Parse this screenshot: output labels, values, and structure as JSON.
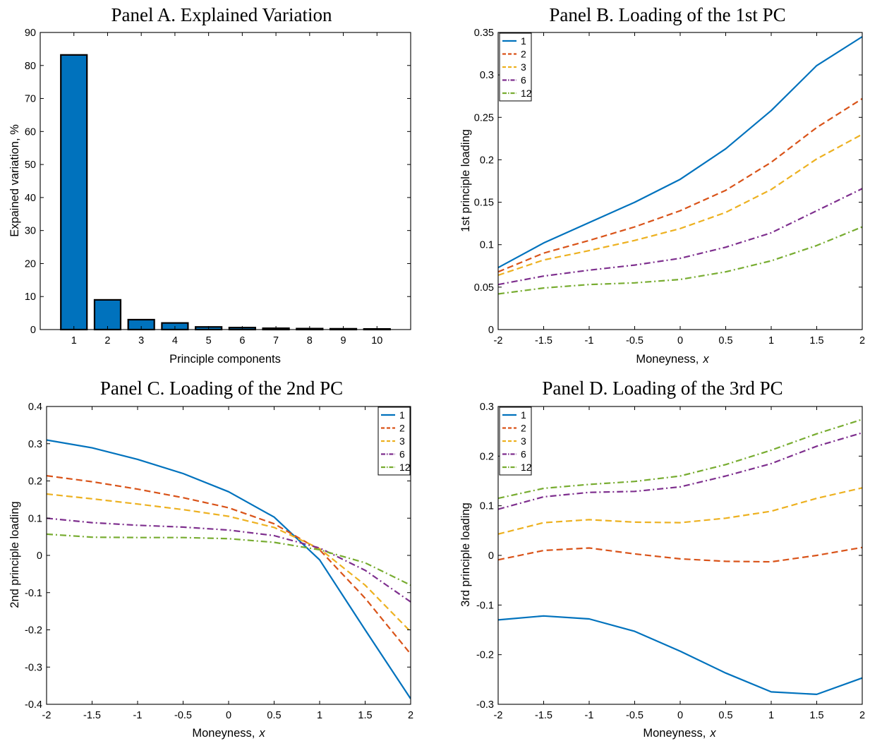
{
  "chart_data": [
    {
      "id": "A",
      "type": "bar",
      "title": "Panel A. Explained Variation",
      "xlabel": "Principle components",
      "ylabel": "Expained variation, %",
      "categories": [
        "1",
        "2",
        "3",
        "4",
        "5",
        "6",
        "7",
        "8",
        "9",
        "10"
      ],
      "values": [
        83.2,
        9.0,
        3.0,
        2.0,
        0.8,
        0.6,
        0.4,
        0.3,
        0.25,
        0.2
      ],
      "xlim": [
        0,
        11
      ],
      "ylim": [
        0,
        90
      ],
      "yticks": [
        "0",
        "10",
        "20",
        "30",
        "40",
        "50",
        "60",
        "70",
        "80",
        "90"
      ],
      "bar_color": "#0072BD",
      "grid": false
    },
    {
      "id": "B",
      "type": "line",
      "title": "Panel B. Loading of the 1st PC",
      "xlabel": "Moneyness,",
      "xlabel_var": "x",
      "ylabel": "1st principle loading",
      "x": [
        -2,
        -1.5,
        -1,
        -0.5,
        0,
        0.5,
        1,
        1.5,
        2
      ],
      "xticks": [
        "-2",
        "-1.5",
        "-1",
        "-0.5",
        "0",
        "0.5",
        "1",
        "1.5",
        "2"
      ],
      "xlim": [
        -2,
        2
      ],
      "ylim": [
        0,
        0.35
      ],
      "yticks": [
        "0",
        "0.05",
        "0.1",
        "0.15",
        "0.2",
        "0.25",
        "0.3",
        "0.35"
      ],
      "legend_position": "top-left",
      "grid": false,
      "series": [
        {
          "name": "1",
          "values": [
            0.073,
            0.102,
            0.126,
            0.15,
            0.177,
            0.213,
            0.258,
            0.311,
            0.345
          ]
        },
        {
          "name": "2",
          "values": [
            0.068,
            0.09,
            0.105,
            0.121,
            0.14,
            0.164,
            0.197,
            0.238,
            0.272
          ]
        },
        {
          "name": "3",
          "values": [
            0.064,
            0.082,
            0.093,
            0.105,
            0.119,
            0.138,
            0.165,
            0.201,
            0.23
          ]
        },
        {
          "name": "6",
          "values": [
            0.053,
            0.063,
            0.07,
            0.076,
            0.084,
            0.097,
            0.114,
            0.14,
            0.166
          ]
        },
        {
          "name": "12",
          "values": [
            0.042,
            0.049,
            0.053,
            0.055,
            0.059,
            0.068,
            0.081,
            0.099,
            0.121
          ]
        }
      ]
    },
    {
      "id": "C",
      "type": "line",
      "title": "Panel C. Loading of the 2nd PC",
      "xlabel": "Moneyness,",
      "xlabel_var": "x",
      "ylabel": "2nd principle loading",
      "x": [
        -2,
        -1.5,
        -1,
        -0.5,
        0,
        0.5,
        1,
        1.5,
        2
      ],
      "xticks": [
        "-2",
        "-1.5",
        "-1",
        "-0.5",
        "0",
        "0.5",
        "1",
        "1.5",
        "2"
      ],
      "xlim": [
        -2,
        2
      ],
      "ylim": [
        -0.4,
        0.4
      ],
      "yticks": [
        "-0.4",
        "-0.3",
        "-0.2",
        "-0.1",
        "0",
        "0.1",
        "0.2",
        "0.3",
        "0.4"
      ],
      "legend_position": "top-right",
      "grid": false,
      "series": [
        {
          "name": "1",
          "values": [
            0.31,
            0.289,
            0.258,
            0.22,
            0.171,
            0.103,
            -0.012,
            -0.2,
            -0.385
          ]
        },
        {
          "name": "2",
          "values": [
            0.214,
            0.198,
            0.178,
            0.155,
            0.128,
            0.085,
            0.015,
            -0.115,
            -0.265
          ]
        },
        {
          "name": "3",
          "values": [
            0.165,
            0.152,
            0.138,
            0.123,
            0.105,
            0.075,
            0.018,
            -0.08,
            -0.205
          ]
        },
        {
          "name": "6",
          "values": [
            0.1,
            0.088,
            0.081,
            0.076,
            0.068,
            0.053,
            0.02,
            -0.04,
            -0.125
          ]
        },
        {
          "name": "12",
          "values": [
            0.057,
            0.049,
            0.048,
            0.048,
            0.045,
            0.035,
            0.015,
            -0.02,
            -0.08
          ]
        }
      ]
    },
    {
      "id": "D",
      "type": "line",
      "title": "Panel D. Loading of the 3rd PC",
      "xlabel": "Moneyness,",
      "xlabel_var": "x",
      "ylabel": "3rd principle loading",
      "x": [
        -2,
        -1.5,
        -1,
        -0.5,
        0,
        0.5,
        1,
        1.5,
        2
      ],
      "xticks": [
        "-2",
        "-1.5",
        "-1",
        "-0.5",
        "0",
        "0.5",
        "1",
        "1.5",
        "2"
      ],
      "xlim": [
        -2,
        2
      ],
      "ylim": [
        -0.3,
        0.3
      ],
      "yticks": [
        "-0.3",
        "-0.2",
        "-0.1",
        "0",
        "0.1",
        "0.2",
        "0.3"
      ],
      "legend_position": "top-left",
      "grid": false,
      "series": [
        {
          "name": "1",
          "values": [
            -0.13,
            -0.122,
            -0.128,
            -0.153,
            -0.193,
            -0.237,
            -0.275,
            -0.28,
            -0.247
          ]
        },
        {
          "name": "2",
          "values": [
            -0.009,
            0.01,
            0.015,
            0.003,
            -0.007,
            -0.012,
            -0.013,
            0.0,
            0.016
          ]
        },
        {
          "name": "3",
          "values": [
            0.043,
            0.066,
            0.072,
            0.067,
            0.066,
            0.075,
            0.089,
            0.115,
            0.136
          ]
        },
        {
          "name": "6",
          "values": [
            0.093,
            0.118,
            0.127,
            0.129,
            0.138,
            0.16,
            0.185,
            0.22,
            0.247
          ]
        },
        {
          "name": "12",
          "values": [
            0.115,
            0.135,
            0.143,
            0.149,
            0.16,
            0.183,
            0.212,
            0.245,
            0.274
          ]
        }
      ]
    }
  ],
  "series_styles": [
    {
      "color": "#0072BD",
      "dash": "none"
    },
    {
      "color": "#D95319",
      "dash": "9,5"
    },
    {
      "color": "#EDB120",
      "dash": "9,5"
    },
    {
      "color": "#7E2F8E",
      "dash": "9,4,2,4"
    },
    {
      "color": "#77AC30",
      "dash": "9,4,2,4"
    }
  ]
}
